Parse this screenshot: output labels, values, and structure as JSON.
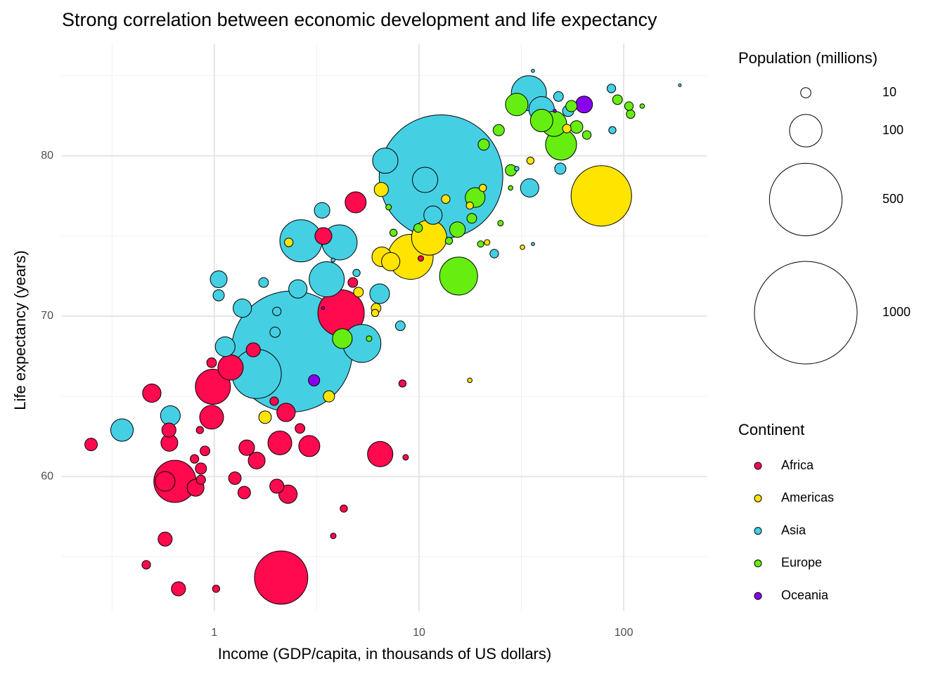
{
  "chart_data": {
    "type": "bubble",
    "title": "Strong correlation between economic development and life expectancy",
    "x_label": "Income (GDP/capita, in thousands of US dollars)",
    "y_label": "Life expectancy (years)",
    "xlog": true,
    "grid": true,
    "xlim": [
      0.18,
      254
    ],
    "ylim": [
      51.6,
      87.0
    ],
    "xticks": [
      1,
      10,
      100
    ],
    "yticks": [
      60,
      70,
      80
    ],
    "legend_position": "right",
    "size_legend": {
      "title": "Population (millions)",
      "values": [
        10,
        100,
        500,
        1000
      ]
    },
    "color_legend_title": "Continent",
    "series": [
      {
        "name": "Africa",
        "color": "#ff0a4e",
        "x": [
          4.16,
          0.642,
          2.12,
          6.46,
          0.984,
          1.2,
          0.97,
          2.09,
          2.91,
          2.24,
          0.575,
          0.81,
          1.61,
          1.44,
          0.495,
          0.603,
          0.6,
          0.575,
          0.668,
          0.25,
          0.465,
          1.02,
          2.29,
          2.02,
          1.4,
          1.26,
          1.55,
          4.9,
          3.41,
          0.9,
          0.86,
          0.8,
          0.97,
          2.62,
          4.29,
          3.81,
          4.75,
          8.3,
          1.96,
          10.2,
          0.85,
          8.6,
          0.86
        ],
        "values": [
          70.2,
          59.7,
          53.7,
          61.4,
          65.6,
          66.8,
          63.7,
          62.1,
          61.9,
          64.0,
          59.7,
          59.3,
          61.0,
          61.8,
          65.2,
          62.1,
          62.9,
          56.1,
          53.0,
          62.0,
          54.5,
          53.0,
          58.9,
          59.4,
          59.0,
          59.9,
          67.9,
          77.1,
          75.0,
          61.6,
          60.5,
          61.1,
          67.1,
          63.0,
          58.0,
          56.3,
          72.1,
          65.8,
          64.7,
          73.6,
          62.9,
          61.2,
          59.8
        ],
        "size": [
          204,
          169,
          270,
          61,
          117,
          61,
          54,
          54,
          42,
          32,
          37,
          27,
          27,
          23,
          32,
          27,
          19,
          19,
          19,
          15,
          7,
          5,
          32,
          19,
          15,
          15,
          19,
          42,
          27,
          9,
          12,
          7,
          9,
          9,
          5,
          3,
          9,
          5,
          7,
          3,
          5,
          3,
          8
        ]
      },
      {
        "name": "Americas",
        "color": "#ffe400",
        "x": [
          77.7,
          9.1,
          11.2,
          6.58,
          7.27,
          6.54,
          1.77,
          3.63,
          5.06,
          6.17,
          13.5,
          2.31,
          35,
          20.5,
          17.7,
          17.7,
          21.5,
          52.7,
          6.1,
          32
        ],
        "values": [
          77.5,
          73.7,
          74.9,
          73.7,
          73.4,
          77.9,
          63.7,
          65.0,
          71.5,
          70.5,
          77.3,
          74.6,
          79.7,
          78.0,
          76.9,
          66.0,
          74.6,
          81.7,
          70.2,
          74.3
        ],
        "size": [
          347,
          192,
          117,
          37,
          32,
          19,
          15,
          12,
          9,
          9,
          7,
          7,
          5,
          5,
          5,
          2,
          3,
          7,
          5,
          2
        ]
      },
      {
        "name": "Asia",
        "color": "#45cfe3",
        "x": [
          12.8,
          2.39,
          2.65,
          1.61,
          5.26,
          3.54,
          4.09,
          34.4,
          6.84,
          10.7,
          11.7,
          1.37,
          0.354,
          0.61,
          1.05,
          2.56,
          6.42,
          3.36,
          34.7,
          39.7,
          1.13,
          49,
          23.3,
          8.1,
          48,
          87,
          88,
          1.05,
          1.74,
          2.02,
          53.5,
          4.95,
          36,
          30,
          36,
          188,
          1.98,
          3.8
        ],
        "values": [
          78.7,
          67.8,
          74.7,
          66.4,
          68.3,
          72.3,
          74.6,
          83.9,
          79.7,
          78.5,
          76.3,
          70.5,
          62.9,
          63.8,
          72.3,
          71.7,
          71.4,
          76.6,
          78.0,
          82.9,
          68.1,
          79.2,
          73.9,
          69.4,
          83.7,
          84.2,
          81.6,
          71.3,
          72.1,
          70.3,
          82.8,
          72.7,
          85.3,
          79.2,
          74.5,
          84.4,
          69.0,
          73.5
        ],
        "size": [
          1450,
          1390,
          169,
          230,
          137,
          117,
          117,
          117,
          61,
          61,
          32,
          32,
          48,
          37,
          27,
          32,
          37,
          23,
          32,
          61,
          37,
          12,
          7,
          9,
          9,
          7,
          5,
          12,
          9,
          7,
          12,
          5,
          1,
          2,
          1,
          0.7,
          10,
          1.5
        ]
      },
      {
        "name": "Europe",
        "color": "#66ee11",
        "x": [
          15.6,
          45.6,
          4.22,
          49.4,
          30,
          39.7,
          18.8,
          15.4,
          20.7,
          24.5,
          28.1,
          58.8,
          55.5,
          93.2,
          108,
          106,
          123,
          9.9,
          18.1,
          7.5,
          5.7,
          14,
          25,
          66,
          7.1,
          20,
          28
        ],
        "values": [
          72.5,
          82.0,
          68.6,
          80.7,
          83.2,
          82.2,
          77.4,
          75.4,
          80.7,
          81.6,
          79.1,
          81.8,
          83.1,
          83.5,
          82.6,
          83.1,
          83.1,
          75.5,
          76.1,
          75.2,
          68.6,
          74.7,
          75.8,
          81.3,
          76.8,
          74.5,
          78.0
        ],
        "size": [
          137,
          61,
          37,
          91,
          48,
          48,
          37,
          23,
          12,
          12,
          12,
          15,
          12,
          9,
          7,
          7,
          2,
          7,
          9,
          5,
          3,
          5,
          3,
          7,
          3,
          4,
          2
        ]
      },
      {
        "name": "Oceania",
        "color": "#8800ee",
        "x": [
          64,
          3.07,
          3.4,
          46
        ],
        "values": [
          83.2,
          66.0,
          70.5,
          82.8
        ],
        "size": [
          27,
          12,
          0.8,
          1
        ]
      }
    ]
  }
}
